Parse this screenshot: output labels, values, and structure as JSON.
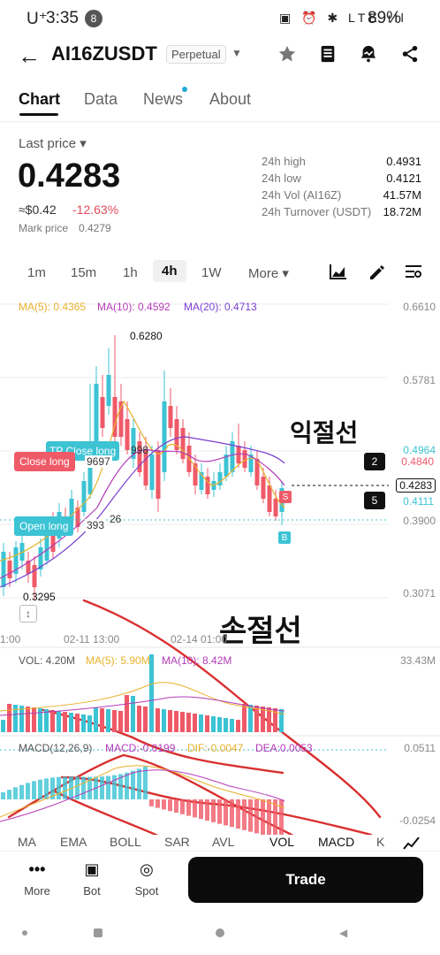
{
  "status": {
    "time": "3:35",
    "carrier": "U⁺",
    "notif_count": "8",
    "icons": "▣ ⏰ ✱ LTE ıll",
    "battery": "89%"
  },
  "header": {
    "back": "←",
    "pair": "AI16ZUSDT",
    "contract": "Perpetual",
    "caret": "▼"
  },
  "tabs": [
    {
      "label": "Chart"
    },
    {
      "label": "Data"
    },
    {
      "label": "News"
    },
    {
      "label": "About"
    }
  ],
  "price": {
    "last_label": "Last price ▾",
    "last": "0.4283",
    "usd": "≈$0.42",
    "change": "-12.63%",
    "mark_label": "Mark price",
    "mark": "0.4279"
  },
  "stats": [
    {
      "label": "24h high",
      "value": "0.4931"
    },
    {
      "label": "24h low",
      "value": "0.4121"
    },
    {
      "label": "24h Vol (AI16Z)",
      "value": "41.57M"
    },
    {
      "label": "24h Turnover (USDT)",
      "value": "18.72M"
    }
  ],
  "intervals": [
    {
      "label": "1m"
    },
    {
      "label": "15m"
    },
    {
      "label": "1h"
    },
    {
      "label": "4h"
    },
    {
      "label": "1W"
    },
    {
      "label": "More ▾"
    }
  ],
  "chart_data": {
    "type": "candlestick",
    "ma": {
      "ma5": "MA(5): 0.4365",
      "ma10": "MA(10): 0.4592",
      "ma20": "MA(20): 0.4713"
    },
    "y_ticks": [
      "0.6610",
      "0.5781",
      "0.4964",
      "0.4840",
      "0.4283",
      "0.4111",
      "0.3900",
      "0.3071"
    ],
    "x_ticks": [
      "1:00",
      "02-11 13:00",
      "02-14 01:00"
    ],
    "high_label": "0.6280",
    "low_label": "0.3295",
    "tp_label": "TP Close long",
    "tp_qty": "9697",
    "tp_price_frag": "998",
    "close_long": "Close long",
    "open_long": "Open long",
    "open_qty": "393",
    "open_frag": "26",
    "badge_2": "2",
    "badge_5": "5",
    "s_marker": "S",
    "b_marker": "B",
    "vol": {
      "vol": "VOL: 4.20M",
      "ma5": "MA(5): 5.90M",
      "ma10": "MA(10): 8.42M",
      "axis": "33.43M"
    },
    "macd": {
      "macd_label": "MACD(12,26,9)",
      "macd": "MACD:-0.0199",
      "dif": "DIF:-0.0047",
      "dea": "DEA:0.0053",
      "axis_top": "0.0511",
      "axis_bot": "-0.0254"
    },
    "annotations": {
      "take_profit": "익절선",
      "stop_loss": "손절선"
    }
  },
  "indicators": [
    {
      "label": "MA"
    },
    {
      "label": "EMA"
    },
    {
      "label": "BOLL"
    },
    {
      "label": "SAR"
    },
    {
      "label": "AVL"
    },
    {
      "label": "VOL"
    },
    {
      "label": "MACD"
    },
    {
      "label": "K"
    }
  ],
  "bottom": {
    "more": "More",
    "bot": "Bot",
    "spot": "Spot",
    "trade": "Trade"
  },
  "colors": {
    "up": "#3cc3d4",
    "down": "#ef5a68",
    "accent": "#111111",
    "ma5": "#e8b12b",
    "ma10": "#b43bb8",
    "ma20": "#7a3fd1"
  }
}
